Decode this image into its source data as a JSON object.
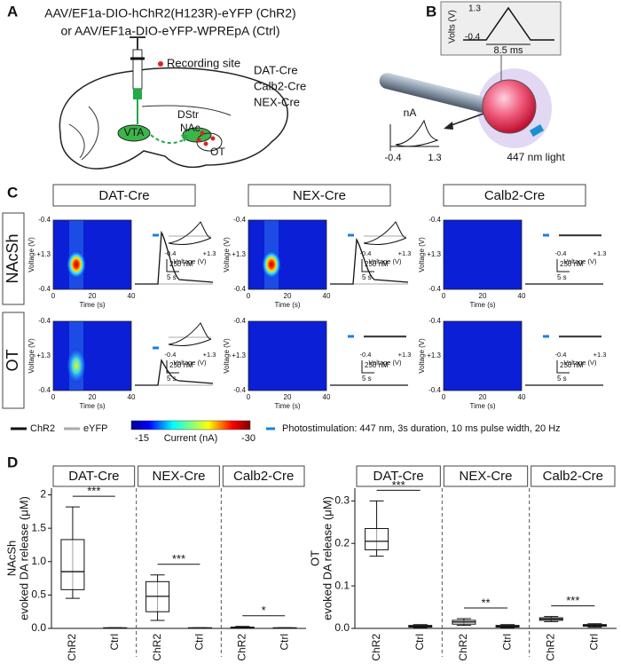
{
  "panel_a": {
    "label": "A",
    "lines": [
      "AAV/EF1a-DIO-hChR2(H123R)-eYFP (ChR2)",
      "or AAV/EF1a-DIO-eYFP-WPREpA (Ctrl)"
    ],
    "recording_site": "Recording site",
    "cre_lines": [
      "DAT-Cre",
      "Calb2-Cre",
      "NEX-Cre"
    ],
    "regions": {
      "dstr": "DStr",
      "nac": "NAc",
      "ot": "OT",
      "vta": "VTA"
    }
  },
  "panel_b": {
    "label": "B",
    "inset_axis": "Volts (V)",
    "inset_top": "1.3",
    "inset_bottom": "-0.4",
    "inset_width": "8.5 ms",
    "trace_unit": "nA",
    "trace_x": [
      "-0.4",
      "1.3"
    ],
    "light": "447 nm light"
  },
  "panel_c": {
    "label": "C",
    "columns": [
      "DAT-Cre",
      "NEX-Cre",
      "Calb2-Cre"
    ],
    "rows": [
      "NAcSh",
      "OT"
    ],
    "voltage_label": "Voltage (V)",
    "voltage_ticks": [
      "-0.4",
      "+1.3",
      "-0.4"
    ],
    "time_label": "Time (s)",
    "time_ticks": [
      "0",
      "20",
      "40"
    ],
    "cv_ticks": [
      "-0.4",
      "+1.3"
    ],
    "scale_conc": "250 nM",
    "scale_time": "5 s",
    "legend": {
      "chr2": "ChR2",
      "eyfp": "eYFP",
      "cbar_low": "-15",
      "cbar_title": "Current (nA)",
      "cbar_high": "-30",
      "stim": "Photostimulation: 447 nm, 3s duration, 10 ms pulse width, 20 Hz"
    }
  },
  "panel_d": {
    "label": "D"
  },
  "chart_data": [
    {
      "type": "box",
      "ylabel": [
        "NAcSh",
        "evoked DA release (μM)"
      ],
      "ylim": [
        0,
        2.1
      ],
      "yticks": [
        {
          "value": 0,
          "label": "0.0"
        },
        0.5,
        {
          "value": 1,
          "label": "1.0"
        },
        1.5,
        2
      ],
      "groups": [
        {
          "name": "DAT-Cre",
          "significance": "***",
          "categories": [
            "ChR2",
            "Ctrl"
          ],
          "boxes": [
            {
              "min": 0.45,
              "q1": 0.58,
              "median": 0.85,
              "q3": 1.33,
              "max": 1.82
            },
            {
              "min": 0,
              "q1": 0,
              "median": 0.005,
              "q3": 0.01,
              "max": 0.01
            }
          ]
        },
        {
          "name": "NEX-Cre",
          "significance": "***",
          "categories": [
            "ChR2",
            "Ctrl"
          ],
          "boxes": [
            {
              "min": 0.12,
              "q1": 0.25,
              "median": 0.48,
              "q3": 0.7,
              "max": 0.8
            },
            {
              "min": 0,
              "q1": 0,
              "median": 0.005,
              "q3": 0.01,
              "max": 0.01
            }
          ]
        },
        {
          "name": "Calb2-Cre",
          "significance": "*",
          "categories": [
            "ChR2",
            "Ctrl"
          ],
          "boxes": [
            {
              "min": 0,
              "q1": 0.005,
              "median": 0.01,
              "q3": 0.02,
              "max": 0.03
            },
            {
              "min": 0,
              "q1": 0,
              "median": 0.005,
              "q3": 0.01,
              "max": 0.01
            }
          ]
        }
      ]
    },
    {
      "type": "box",
      "ylabel": [
        "OT",
        "evoked DA release (μM)"
      ],
      "ylim": [
        0,
        0.33
      ],
      "yticks": [
        {
          "value": 0,
          "label": "0.0"
        },
        0.1,
        0.2,
        0.3
      ],
      "groups": [
        {
          "name": "DAT-Cre",
          "significance": "***",
          "categories": [
            "ChR2",
            "Ctrl"
          ],
          "boxes": [
            {
              "min": 0.17,
              "q1": 0.185,
              "median": 0.205,
              "q3": 0.235,
              "max": 0.3
            },
            {
              "min": 0.002,
              "q1": 0.003,
              "median": 0.005,
              "q3": 0.007,
              "max": 0.009
            }
          ]
        },
        {
          "name": "NEX-Cre",
          "significance": "**",
          "categories": [
            "ChR2",
            "Ctrl"
          ],
          "boxes": [
            {
              "min": 0.007,
              "q1": 0.01,
              "median": 0.015,
              "q3": 0.019,
              "max": 0.023
            },
            {
              "min": 0.002,
              "q1": 0.003,
              "median": 0.005,
              "q3": 0.007,
              "max": 0.009
            }
          ]
        },
        {
          "name": "Calb2-Cre",
          "significance": "***",
          "categories": [
            "ChR2",
            "Ctrl"
          ],
          "boxes": [
            {
              "min": 0.016,
              "q1": 0.019,
              "median": 0.022,
              "q3": 0.025,
              "max": 0.028
            },
            {
              "min": 0.003,
              "q1": 0.005,
              "median": 0.007,
              "q3": 0.009,
              "max": 0.011
            }
          ]
        }
      ]
    }
  ]
}
